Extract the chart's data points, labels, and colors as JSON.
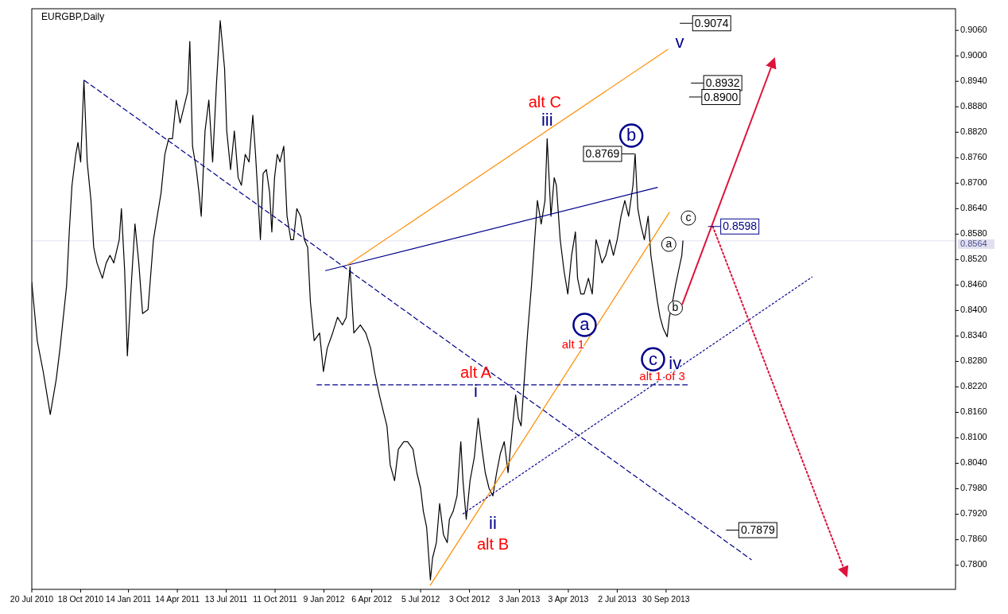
{
  "chart_data": {
    "type": "line",
    "title": "EURGBP,Daily",
    "xlim": [
      "2010-07-20",
      "2015-03-17"
    ],
    "xticks": [
      {
        "value": "2010-07-20",
        "label": "20 Jul 2010"
      },
      {
        "value": "2010-10-18",
        "label": "18 Oct 2010"
      },
      {
        "value": "2011-01-14",
        "label": "14 Jan 2011"
      },
      {
        "value": "2011-04-14",
        "label": "14 Apr 2011"
      },
      {
        "value": "2011-07-13",
        "label": "13 Jul 2011"
      },
      {
        "value": "2011-10-11",
        "label": "11 Oct 2011"
      },
      {
        "value": "2012-01-09",
        "label": "9 Jan 2012"
      },
      {
        "value": "2012-04-06",
        "label": "6 Apr 2012"
      },
      {
        "value": "2012-07-05",
        "label": "5 Jul 2012"
      },
      {
        "value": "2012-10-03",
        "label": "3 Oct 2012"
      },
      {
        "value": "2013-01-03",
        "label": "3 Jan 2013"
      },
      {
        "value": "2013-04-03",
        "label": "3 Apr 2013"
      },
      {
        "value": "2013-07-02",
        "label": "2 Jul 2013"
      },
      {
        "value": "2013-09-30",
        "label": "30 Sep 2013"
      }
    ],
    "ylim": [
      0.7743,
      0.9111
    ],
    "yticks": [
      {
        "value": 0.906,
        "label": "0.9060"
      },
      {
        "value": 0.9,
        "label": "0.9000"
      },
      {
        "value": 0.894,
        "label": "0.8940"
      },
      {
        "value": 0.888,
        "label": "0.8880"
      },
      {
        "value": 0.882,
        "label": "0.8820"
      },
      {
        "value": 0.876,
        "label": "0.8760"
      },
      {
        "value": 0.87,
        "label": "0.8700"
      },
      {
        "value": 0.864,
        "label": "0.8640"
      },
      {
        "value": 0.858,
        "label": "0.8580"
      },
      {
        "value": 0.852,
        "label": "0.8520"
      },
      {
        "value": 0.846,
        "label": "0.8460"
      },
      {
        "value": 0.84,
        "label": "0.8400"
      },
      {
        "value": 0.834,
        "label": "0.8340"
      },
      {
        "value": 0.828,
        "label": "0.8280"
      },
      {
        "value": 0.822,
        "label": "0.8220"
      },
      {
        "value": 0.816,
        "label": "0.8160"
      },
      {
        "value": 0.81,
        "label": "0.8100"
      },
      {
        "value": 0.804,
        "label": "0.8040"
      },
      {
        "value": 0.798,
        "label": "0.7980"
      },
      {
        "value": 0.792,
        "label": "0.7920"
      },
      {
        "value": 0.786,
        "label": "0.7860"
      },
      {
        "value": 0.78,
        "label": "0.7800"
      }
    ],
    "series": [
      {
        "color": "#000000",
        "x": [
          "2010-07-20",
          "2010-07-30",
          "2010-08-10",
          "2010-08-23",
          "2010-09-03",
          "2010-09-10",
          "2010-09-22",
          "2010-09-27",
          "2010-10-02",
          "2010-10-09",
          "2010-10-13",
          "2010-10-18",
          "2010-10-24",
          "2010-10-30",
          "2010-11-06",
          "2010-11-11",
          "2010-11-17",
          "2010-11-27",
          "2010-12-04",
          "2010-12-11",
          "2010-12-18",
          "2010-12-28",
          "2011-01-01",
          "2011-01-07",
          "2011-01-12",
          "2011-01-19",
          "2011-01-26",
          "2011-02-02",
          "2011-02-09",
          "2011-02-19",
          "2011-03-01",
          "2011-03-08",
          "2011-03-15",
          "2011-03-22",
          "2011-03-29",
          "2011-04-05",
          "2011-04-12",
          "2011-04-19",
          "2011-04-26",
          "2011-05-03",
          "2011-05-07",
          "2011-05-12",
          "2011-05-19",
          "2011-05-24",
          "2011-05-28",
          "2011-06-04",
          "2011-06-11",
          "2011-06-18",
          "2011-06-25",
          "2011-07-02",
          "2011-07-10",
          "2011-07-14",
          "2011-07-21",
          "2011-07-28",
          "2011-08-04",
          "2011-08-10",
          "2011-08-17",
          "2011-08-24",
          "2011-08-31",
          "2011-09-05",
          "2011-09-14",
          "2011-09-19",
          "2011-09-25",
          "2011-10-01",
          "2011-10-05",
          "2011-10-10",
          "2011-10-15",
          "2011-10-20",
          "2011-10-27",
          "2011-11-02",
          "2011-11-09",
          "2011-11-14",
          "2011-11-20",
          "2011-11-27",
          "2011-12-04",
          "2011-12-10",
          "2011-12-15",
          "2011-12-22",
          "2012-01-01",
          "2012-01-08",
          "2012-01-15",
          "2012-01-25",
          "2012-02-03",
          "2012-02-12",
          "2012-02-19",
          "2012-02-26",
          "2012-03-04",
          "2012-03-16",
          "2012-03-26",
          "2012-04-04",
          "2012-04-11",
          "2012-04-20",
          "2012-04-27",
          "2012-05-04",
          "2012-05-10",
          "2012-05-18",
          "2012-05-25",
          "2012-06-04",
          "2012-06-11",
          "2012-06-21",
          "2012-06-28",
          "2012-07-05",
          "2012-07-10",
          "2012-07-16",
          "2012-07-23",
          "2012-07-27",
          "2012-08-03",
          "2012-08-09",
          "2012-08-16",
          "2012-08-23",
          "2012-08-27",
          "2012-09-03",
          "2012-09-10",
          "2012-09-17",
          "2012-09-21",
          "2012-09-27",
          "2012-10-04",
          "2012-10-12",
          "2012-10-19",
          "2012-10-26",
          "2012-11-01",
          "2012-11-08",
          "2012-11-15",
          "2012-11-22",
          "2012-11-29",
          "2012-12-06",
          "2012-12-13",
          "2012-12-20",
          "2012-12-27",
          "2013-01-01",
          "2013-01-06",
          "2013-01-12",
          "2013-01-18",
          "2013-01-25",
          "2013-01-29",
          "2013-02-05",
          "2013-02-12",
          "2013-02-19",
          "2013-02-23",
          "2013-03-02",
          "2013-03-08",
          "2013-03-12",
          "2013-03-19",
          "2013-03-26",
          "2013-04-02",
          "2013-04-09",
          "2013-04-16",
          "2013-04-20",
          "2013-04-26",
          "2013-05-02",
          "2013-05-10",
          "2013-05-17",
          "2013-05-24",
          "2013-05-28",
          "2013-06-04",
          "2013-06-11",
          "2013-06-18",
          "2013-06-25",
          "2013-07-02",
          "2013-07-09",
          "2013-07-16",
          "2013-07-23",
          "2013-07-31",
          "2013-08-04",
          "2013-08-09",
          "2013-08-14",
          "2013-08-21",
          "2013-08-28",
          "2013-09-02",
          "2013-09-08",
          "2013-09-14",
          "2013-09-19",
          "2013-09-25",
          "2013-10-02",
          "2013-10-06",
          "2013-10-12",
          "2013-10-17",
          "2013-10-23",
          "2013-10-29",
          "2013-10-31"
        ],
        "values": [
          0.8466,
          0.8329,
          0.8256,
          0.8155,
          0.8238,
          0.8311,
          0.8457,
          0.8585,
          0.8695,
          0.8768,
          0.8796,
          0.875,
          0.8942,
          0.875,
          0.8659,
          0.8549,
          0.8512,
          0.8476,
          0.8512,
          0.853,
          0.8512,
          0.8567,
          0.864,
          0.8494,
          0.8293,
          0.8457,
          0.8604,
          0.8512,
          0.8393,
          0.8402,
          0.8567,
          0.8622,
          0.8677,
          0.8768,
          0.8805,
          0.8805,
          0.8896,
          0.8842,
          0.8878,
          0.8915,
          0.9034,
          0.8787,
          0.8732,
          0.8677,
          0.8622,
          0.8823,
          0.8896,
          0.875,
          0.8933,
          0.9083,
          0.897,
          0.8823,
          0.8732,
          0.8823,
          0.8713,
          0.8695,
          0.8768,
          0.875,
          0.886,
          0.8768,
          0.8567,
          0.8723,
          0.8732,
          0.8677,
          0.8585,
          0.8713,
          0.8768,
          0.875,
          0.8787,
          0.8622,
          0.8567,
          0.8567,
          0.864,
          0.8622,
          0.8567,
          0.8549,
          0.8421,
          0.8329,
          0.8347,
          0.8256,
          0.8311,
          0.8347,
          0.8384,
          0.8366,
          0.8384,
          0.8503,
          0.8347,
          0.8366,
          0.8347,
          0.8311,
          0.8256,
          0.8201,
          0.8164,
          0.8128,
          0.8036,
          0.7999,
          0.8073,
          0.8091,
          0.8091,
          0.8073,
          0.8018,
          0.7981,
          0.7927,
          0.789,
          0.7765,
          0.7817,
          0.7853,
          0.7945,
          0.7872,
          0.7853,
          0.7908,
          0.7927,
          0.7963,
          0.8091,
          0.7999,
          0.7908,
          0.7999,
          0.8055,
          0.8146,
          0.8073,
          0.8018,
          0.7981,
          0.7963,
          0.8018,
          0.8064,
          0.8091,
          0.8018,
          0.811,
          0.8201,
          0.8146,
          0.8128,
          0.8238,
          0.8347,
          0.8457,
          0.853,
          0.8659,
          0.8604,
          0.8659,
          0.8805,
          0.8622,
          0.8713,
          0.8695,
          0.8567,
          0.8494,
          0.8439,
          0.853,
          0.8585,
          0.8476,
          0.8439,
          0.8439,
          0.8476,
          0.8439,
          0.8567,
          0.8549,
          0.8512,
          0.853,
          0.8567,
          0.853,
          0.8567,
          0.8622,
          0.8659,
          0.8622,
          0.8695,
          0.8769,
          0.864,
          0.8604,
          0.8567,
          0.8622,
          0.853,
          0.8476,
          0.8421,
          0.8384,
          0.8357,
          0.8338,
          0.8384,
          0.8421,
          0.8457,
          0.8494,
          0.853,
          0.8564
        ]
      },
      {
        "color": "#00008b",
        "line_style": "dashed",
        "x": [
          "2010-10-25",
          "2014-03-06"
        ],
        "values": [
          0.8942,
          0.7813
        ]
      },
      {
        "color": "#00008b",
        "x": [
          "2012-01-12",
          "2013-09-14"
        ],
        "values": [
          0.8494,
          0.869
        ]
      },
      {
        "color": "#ff8c00",
        "x": [
          "2012-02-21",
          "2013-10-03"
        ],
        "values": [
          0.8507,
          0.9015
        ]
      },
      {
        "color": "#ff8c00",
        "x": [
          "2012-07-23",
          "2013-10-06"
        ],
        "values": [
          0.7753,
          0.8631
        ]
      },
      {
        "color": "#00008b",
        "line_style": "dashed",
        "x": [
          "2011-12-27",
          "2013-11-11"
        ],
        "values": [
          0.8225,
          0.8225
        ]
      },
      {
        "color": "#00008b",
        "line_style": "dotted",
        "x": [
          "2012-09-21",
          "2014-06-26"
        ],
        "values": [
          0.7921,
          0.8479
        ]
      },
      {
        "color": "#dc143c",
        "x": [
          "2013-10-30",
          "2014-04-17"
        ],
        "values": [
          0.8415,
          0.8992
        ]
      },
      {
        "color": "#dc143c",
        "line_style": "dotted",
        "x": [
          "2013-12-25",
          "2014-08-28"
        ],
        "values": [
          0.8598,
          0.7776
        ]
      }
    ],
    "ref_lines": [
      {
        "axis": "y",
        "value": 0.8564,
        "label": "0.8564",
        "color": "#e0e0f0"
      }
    ],
    "annotations": [
      {
        "text": "alt C",
        "x": "2013-02-23",
        "y": 0.8805
      },
      {
        "text": "iii",
        "x": "2013-02-23",
        "y": 0.8805
      },
      {
        "text": "v",
        "x": "2013-10-03",
        "y": 0.9015
      },
      {
        "text": "b",
        "x": "2013-07-28",
        "y": 0.8812
      },
      {
        "text": "0.8769",
        "x": "2013-08-04",
        "y": 0.8769
      },
      "0.9074",
      "0.8932",
      "0.8900",
      {
        "text": "0.8598",
        "x": "2013-12-25",
        "y": 0.8598
      },
      "0.7879",
      {
        "text": "a",
        "x": "2013-10-05",
        "y": 0.8556
      },
      {
        "text": "c",
        "x": "2013-11-10",
        "y": 0.8618
      },
      {
        "text": "b",
        "x": "2013-10-17",
        "y": 0.8406
      },
      {
        "text": "a",
        "x": "2013-05-03",
        "y": 0.8366
      },
      "alt 1",
      {
        "text": "c",
        "x": "2013-09-06",
        "y": 0.8285
      },
      {
        "text": "iv",
        "x": "2013-10-02",
        "y": 0.8338
      },
      {
        "text": "alt 1 of 3",
        "x": "2013-09-23",
        "y": 0.8243
      },
      {
        "text": "alt A",
        "x": "2012-10-19",
        "y": 0.8146
      },
      {
        "text": "i",
        "x": "2012-10-19",
        "y": 0.8146
      },
      {
        "text": "ii",
        "x": "2012-11-15",
        "y": 0.7963
      },
      {
        "text": "alt B",
        "x": "2012-11-15",
        "y": 0.7963
      }
    ]
  }
}
